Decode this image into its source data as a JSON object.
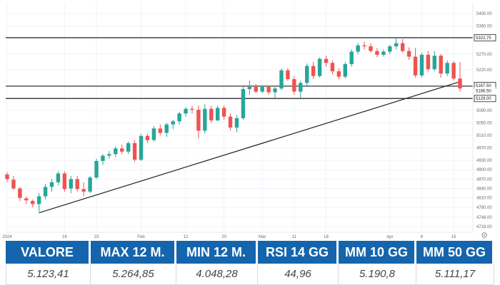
{
  "chart_data": {
    "type": "candlestick",
    "x_tick_labels": [
      "2024",
      "16",
      "23",
      "Feb",
      "12",
      "20",
      "Mar",
      "11",
      "18",
      "Apr",
      "8",
      "15"
    ],
    "y_ticks": [
      4718,
      4748,
      4780,
      4810,
      4840,
      4870,
      4900,
      4930,
      4970,
      5010,
      5050,
      5090,
      5130,
      5170,
      5220,
      5270,
      5320,
      5360,
      5400
    ],
    "y_tick_labels": [
      "4718.00",
      "4748.00",
      "4780.00",
      "4810.00",
      "4840.00",
      "4870.00",
      "4900.00",
      "4930.00",
      "4970.00",
      "5010.00",
      "5050.00",
      "5090.00",
      "5130.00",
      "5170.00",
      "5220.00",
      "5270.00",
      "5320.00",
      "5360.00",
      "5400.00"
    ],
    "y_range": [
      4700,
      5420
    ],
    "horizontal_levels": [
      {
        "value": 5322.75,
        "label": "5322.75"
      },
      {
        "value": 5167.5,
        "label": "5167.50"
      },
      {
        "value": 5128,
        "label": "5128.00"
      }
    ],
    "price_marker": {
      "value": 5166.5,
      "label": "5166.50"
    },
    "trendline": {
      "start": {
        "index": 5,
        "value": 4762
      },
      "end": {
        "index": 71,
        "value": 5182
      }
    },
    "up_color": "#26a69a",
    "down_color": "#ef5350",
    "candles": [
      {
        "o": 4885,
        "h": 4892,
        "l": 4860,
        "c": 4870
      },
      {
        "o": 4868,
        "h": 4880,
        "l": 4835,
        "c": 4840
      },
      {
        "o": 4840,
        "h": 4845,
        "l": 4800,
        "c": 4810
      },
      {
        "o": 4808,
        "h": 4815,
        "l": 4790,
        "c": 4802
      },
      {
        "o": 4800,
        "h": 4805,
        "l": 4780,
        "c": 4790
      },
      {
        "o": 4790,
        "h": 4825,
        "l": 4765,
        "c": 4815
      },
      {
        "o": 4815,
        "h": 4855,
        "l": 4805,
        "c": 4845
      },
      {
        "o": 4845,
        "h": 4870,
        "l": 4830,
        "c": 4860
      },
      {
        "o": 4860,
        "h": 4895,
        "l": 4850,
        "c": 4888
      },
      {
        "o": 4888,
        "h": 4895,
        "l": 4830,
        "c": 4838
      },
      {
        "o": 4840,
        "h": 4880,
        "l": 4825,
        "c": 4870
      },
      {
        "o": 4870,
        "h": 4880,
        "l": 4830,
        "c": 4838
      },
      {
        "o": 4838,
        "h": 4860,
        "l": 4815,
        "c": 4830
      },
      {
        "o": 4830,
        "h": 4880,
        "l": 4825,
        "c": 4875
      },
      {
        "o": 4875,
        "h": 4935,
        "l": 4870,
        "c": 4928
      },
      {
        "o": 4928,
        "h": 4950,
        "l": 4915,
        "c": 4945
      },
      {
        "o": 4945,
        "h": 4960,
        "l": 4935,
        "c": 4950
      },
      {
        "o": 4950,
        "h": 4975,
        "l": 4940,
        "c": 4968
      },
      {
        "o": 4968,
        "h": 4980,
        "l": 4950,
        "c": 4958
      },
      {
        "o": 4958,
        "h": 4990,
        "l": 4950,
        "c": 4985
      },
      {
        "o": 4985,
        "h": 4995,
        "l": 4925,
        "c": 4932
      },
      {
        "o": 4932,
        "h": 5015,
        "l": 4928,
        "c": 5008
      },
      {
        "o": 5008,
        "h": 5015,
        "l": 4985,
        "c": 4995
      },
      {
        "o": 4995,
        "h": 5040,
        "l": 4990,
        "c": 5032
      },
      {
        "o": 5032,
        "h": 5045,
        "l": 5010,
        "c": 5018
      },
      {
        "o": 5018,
        "h": 5050,
        "l": 5005,
        "c": 5045
      },
      {
        "o": 5045,
        "h": 5060,
        "l": 5030,
        "c": 5055
      },
      {
        "o": 5055,
        "h": 5085,
        "l": 5045,
        "c": 5080
      },
      {
        "o": 5080,
        "h": 5100,
        "l": 5070,
        "c": 5095
      },
      {
        "o": 5095,
        "h": 5105,
        "l": 5080,
        "c": 5092
      },
      {
        "o": 5092,
        "h": 5105,
        "l": 5000,
        "c": 5025
      },
      {
        "o": 5025,
        "h": 5110,
        "l": 5015,
        "c": 5095
      },
      {
        "o": 5095,
        "h": 5105,
        "l": 5050,
        "c": 5058
      },
      {
        "o": 5058,
        "h": 5105,
        "l": 5055,
        "c": 5098
      },
      {
        "o": 5098,
        "h": 5105,
        "l": 5060,
        "c": 5070
      },
      {
        "o": 5070,
        "h": 5080,
        "l": 5025,
        "c": 5035
      },
      {
        "o": 5035,
        "h": 5075,
        "l": 5020,
        "c": 5065
      },
      {
        "o": 5065,
        "h": 5165,
        "l": 5060,
        "c": 5158
      },
      {
        "o": 5158,
        "h": 5185,
        "l": 5140,
        "c": 5165
      },
      {
        "o": 5165,
        "h": 5175,
        "l": 5145,
        "c": 5150
      },
      {
        "o": 5150,
        "h": 5170,
        "l": 5145,
        "c": 5165
      },
      {
        "o": 5165,
        "h": 5170,
        "l": 5140,
        "c": 5148
      },
      {
        "o": 5148,
        "h": 5165,
        "l": 5130,
        "c": 5160
      },
      {
        "o": 5160,
        "h": 5225,
        "l": 5155,
        "c": 5218
      },
      {
        "o": 5218,
        "h": 5225,
        "l": 5185,
        "c": 5190
      },
      {
        "o": 5190,
        "h": 5200,
        "l": 5140,
        "c": 5150
      },
      {
        "o": 5150,
        "h": 5185,
        "l": 5130,
        "c": 5178
      },
      {
        "o": 5178,
        "h": 5240,
        "l": 5170,
        "c": 5232
      },
      {
        "o": 5232,
        "h": 5245,
        "l": 5190,
        "c": 5200
      },
      {
        "o": 5200,
        "h": 5260,
        "l": 5195,
        "c": 5255
      },
      {
        "o": 5255,
        "h": 5265,
        "l": 5230,
        "c": 5242
      },
      {
        "o": 5242,
        "h": 5250,
        "l": 5205,
        "c": 5215
      },
      {
        "o": 5215,
        "h": 5225,
        "l": 5190,
        "c": 5198
      },
      {
        "o": 5198,
        "h": 5245,
        "l": 5192,
        "c": 5238
      },
      {
        "o": 5238,
        "h": 5285,
        "l": 5230,
        "c": 5278
      },
      {
        "o": 5278,
        "h": 5305,
        "l": 5270,
        "c": 5298
      },
      {
        "o": 5298,
        "h": 5310,
        "l": 5285,
        "c": 5295
      },
      {
        "o": 5295,
        "h": 5305,
        "l": 5275,
        "c": 5280
      },
      {
        "o": 5280,
        "h": 5290,
        "l": 5260,
        "c": 5268
      },
      {
        "o": 5268,
        "h": 5285,
        "l": 5262,
        "c": 5278
      },
      {
        "o": 5278,
        "h": 5300,
        "l": 5270,
        "c": 5295
      },
      {
        "o": 5295,
        "h": 5320,
        "l": 5285,
        "c": 5305
      },
      {
        "o": 5305,
        "h": 5318,
        "l": 5275,
        "c": 5280
      },
      {
        "o": 5280,
        "h": 5292,
        "l": 5252,
        "c": 5262
      },
      {
        "o": 5262,
        "h": 5290,
        "l": 5195,
        "c": 5202
      },
      {
        "o": 5202,
        "h": 5275,
        "l": 5195,
        "c": 5268
      },
      {
        "o": 5268,
        "h": 5280,
        "l": 5215,
        "c": 5222
      },
      {
        "o": 5222,
        "h": 5280,
        "l": 5215,
        "c": 5265
      },
      {
        "o": 5265,
        "h": 5270,
        "l": 5195,
        "c": 5208
      },
      {
        "o": 5208,
        "h": 5250,
        "l": 5200,
        "c": 5242
      },
      {
        "o": 5242,
        "h": 5248,
        "l": 5185,
        "c": 5192
      },
      {
        "o": 5192,
        "h": 5245,
        "l": 5150,
        "c": 5160
      }
    ]
  },
  "stats": [
    {
      "label": "VALORE",
      "value": "5.123,41"
    },
    {
      "label": "MAX 12 M.",
      "value": "5.264,85"
    },
    {
      "label": "MIN 12 M.",
      "value": "4.048,28"
    },
    {
      "label": "RSI 14 GG",
      "value": "44,96"
    },
    {
      "label": "MM 10 GG",
      "value": "5.190,8"
    },
    {
      "label": "MM 50 GG",
      "value": "5.111,17"
    }
  ]
}
